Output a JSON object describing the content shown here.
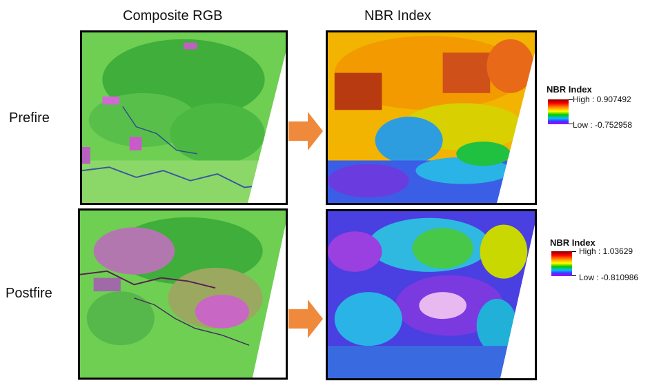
{
  "columns": {
    "composite": "Composite RGB",
    "nbr": "NBR Index"
  },
  "rows": {
    "prefire": "Prefire",
    "postfire": "Postfire"
  },
  "legends": {
    "prefire": {
      "title": "NBR Index",
      "high": "High : 0.907492",
      "low": "Low : -0.752958"
    },
    "postfire": {
      "title": "NBR Index",
      "high": "High : 1.03629",
      "low": "Low : -0.810986"
    }
  },
  "colors": {
    "arrow": "#ef8a3c",
    "frame": "#000000"
  }
}
